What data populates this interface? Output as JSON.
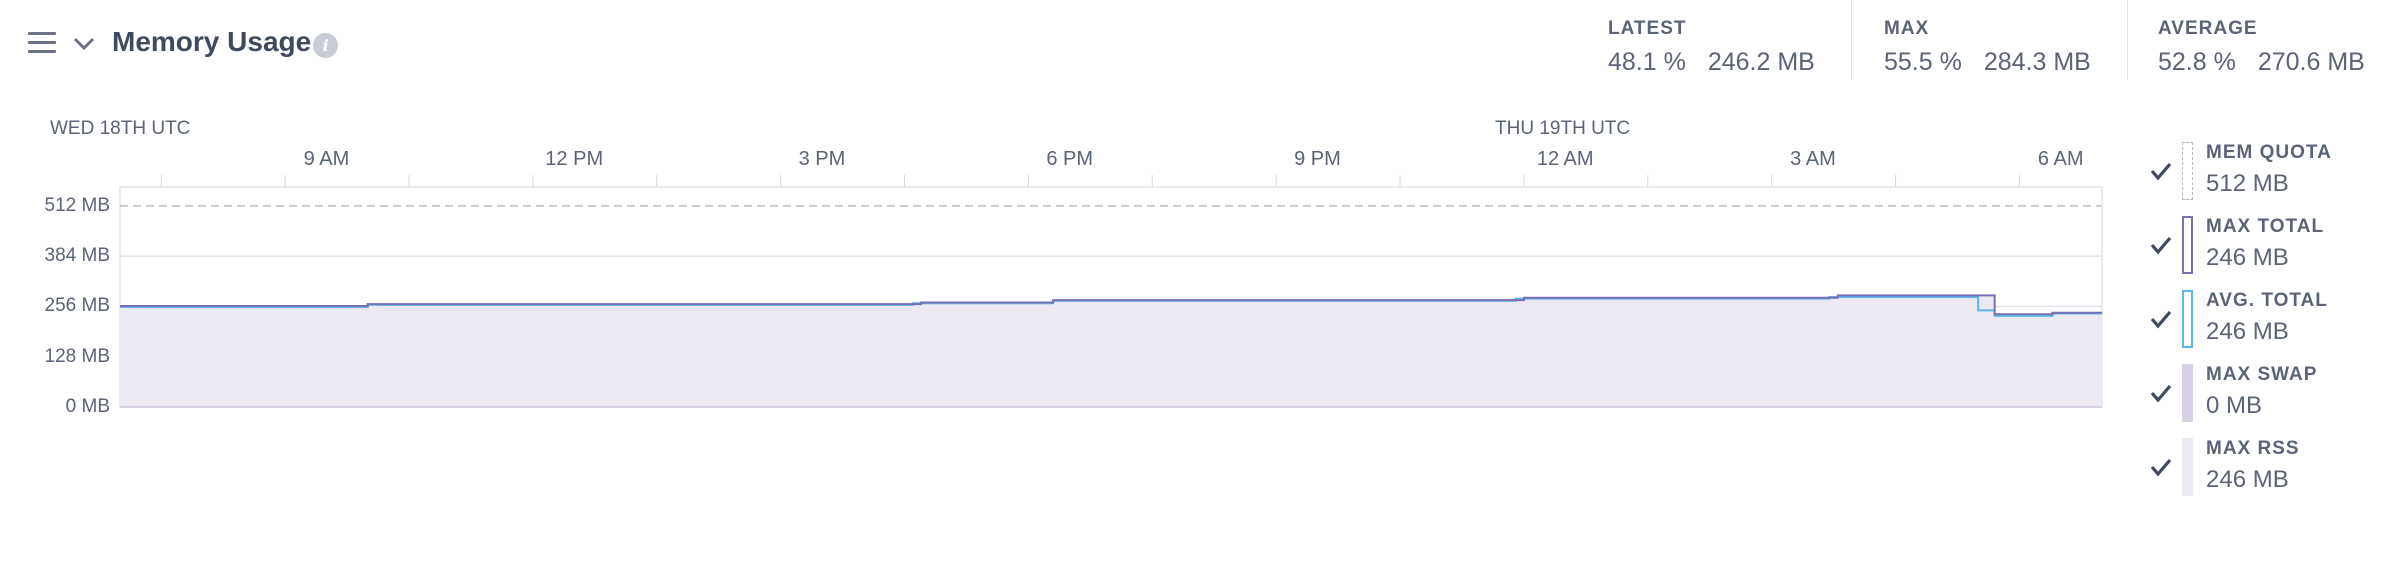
{
  "header": {
    "title": "Memory Usage",
    "info_glyph": "i",
    "stats": [
      {
        "label": "LATEST",
        "percent": "48.1 %",
        "mb": "246.2 MB"
      },
      {
        "label": "MAX",
        "percent": "55.5 %",
        "mb": "284.3 MB"
      },
      {
        "label": "AVERAGE",
        "percent": "52.8 %",
        "mb": "270.6 MB"
      }
    ]
  },
  "icons": {
    "menu": "hamburger-menu-icon",
    "collapse": "chevron-down-icon",
    "info": "info-icon",
    "check": "check-icon"
  },
  "colors": {
    "quota_line": "#b8bcc6",
    "max_total": "#7b6fb3",
    "avg_total": "#5bb8e6",
    "max_swap": "#d8d1e6",
    "max_rss": "#ede9f3",
    "axis_text": "#5b6376",
    "gridline": "#d7d9df"
  },
  "chart_data": {
    "type": "line",
    "date_labels": [
      {
        "label": "WED 18TH UTC"
      },
      {
        "label": "THU 19TH UTC"
      }
    ],
    "x_tick_labels": [
      "9 AM",
      "12 PM",
      "3 PM",
      "6 PM",
      "9 PM",
      "12 AM",
      "3 AM",
      "6 AM"
    ],
    "x_hours_range": [
      6.5,
      30.5
    ],
    "y_tick_labels": [
      "512 MB",
      "384 MB",
      "256 MB",
      "128 MB",
      "0 MB"
    ],
    "y_ticks": [
      512,
      384,
      256,
      128,
      0
    ],
    "ylim": [
      0,
      560
    ],
    "quota": 512,
    "series": [
      {
        "name": "MAX TOTAL",
        "points": [
          [
            6.5,
            257
          ],
          [
            9.5,
            257
          ],
          [
            9.5,
            262
          ],
          [
            16.2,
            262
          ],
          [
            16.2,
            266
          ],
          [
            17.8,
            266
          ],
          [
            17.8,
            272
          ],
          [
            23.5,
            272
          ],
          [
            23.5,
            278
          ],
          [
            27.3,
            278
          ],
          [
            27.3,
            284
          ],
          [
            29.2,
            284
          ],
          [
            29.2,
            236
          ],
          [
            29.9,
            236
          ],
          [
            29.9,
            240
          ],
          [
            30.5,
            240
          ]
        ]
      },
      {
        "name": "AVG. TOTAL",
        "points": [
          [
            6.5,
            255
          ],
          [
            9.5,
            255
          ],
          [
            9.5,
            260
          ],
          [
            16.1,
            260
          ],
          [
            16.1,
            264
          ],
          [
            17.8,
            264
          ],
          [
            17.8,
            270
          ],
          [
            23.4,
            270
          ],
          [
            23.4,
            276
          ],
          [
            27.2,
            276
          ],
          [
            27.2,
            280
          ],
          [
            29.0,
            280
          ],
          [
            29.0,
            246
          ],
          [
            29.2,
            246
          ],
          [
            29.2,
            232
          ],
          [
            29.9,
            232
          ],
          [
            29.9,
            238
          ],
          [
            30.5,
            238
          ]
        ]
      }
    ],
    "legend": [
      {
        "name": "MEM QUOTA",
        "value": "512 MB",
        "checked": true
      },
      {
        "name": "MAX TOTAL",
        "value": "246 MB",
        "checked": true
      },
      {
        "name": "AVG. TOTAL",
        "value": "246 MB",
        "checked": true
      },
      {
        "name": "MAX SWAP",
        "value": "0 MB",
        "checked": true
      },
      {
        "name": "MAX RSS",
        "value": "246 MB",
        "checked": true
      }
    ]
  }
}
